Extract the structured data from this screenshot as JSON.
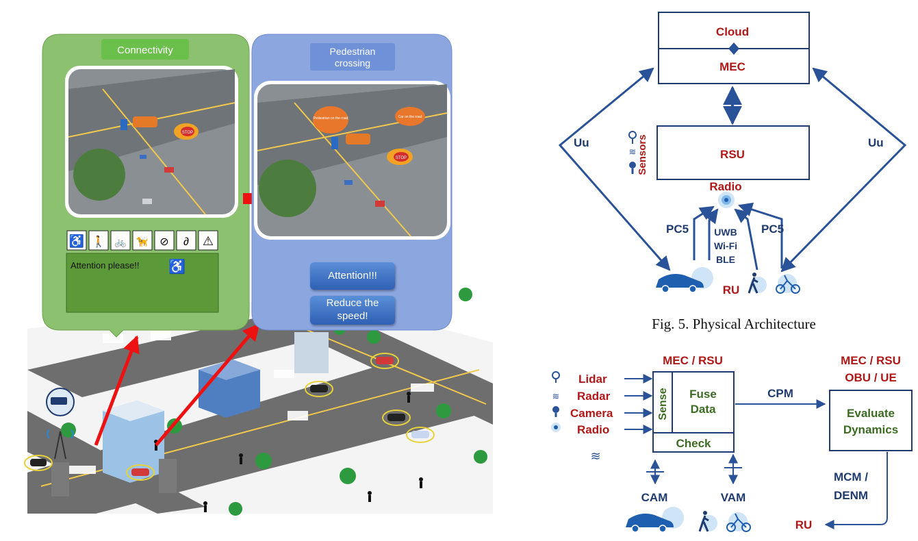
{
  "left_scene": {
    "connectivity_panel": {
      "title": "Connectivity",
      "icons": [
        "wheelchair-icon",
        "elderly-icon",
        "bicycle-icon",
        "guide-dog-icon",
        "low-vision-icon",
        "hearing-impaired-icon",
        "warning-icon"
      ],
      "message": "Attention please!!"
    },
    "crossing_panel": {
      "title_line1": "Pedestrian",
      "title_line2": "crossing",
      "bubble1": "Pedestrian on the road",
      "bubble2": "Car on the road",
      "stop_sign": "STOP",
      "button1": "Attention!!!",
      "button2_line1": "Reduce the",
      "button2_line2": "speed!"
    },
    "colors": {
      "green_panel": "#8cc26f",
      "blue_panel": "#8ca6e0",
      "arrow": "#ee1111"
    }
  },
  "physical_architecture": {
    "cloud": "Cloud",
    "mec": "MEC",
    "rsu": "RSU",
    "sensors": "Sensors",
    "radio": "Radio",
    "uu_left": "Uu",
    "uu_right": "Uu",
    "pc5_left": "PC5",
    "pc5_right": "PC5",
    "uwb": "UWB",
    "wifi": "Wi-Fi",
    "ble": "BLE",
    "ru": "RU",
    "caption": "Fig. 5.  Physical Architecture"
  },
  "data_flow": {
    "mec_rsu": "MEC / RSU",
    "inputs": [
      "Lidar",
      "Radar",
      "Camera",
      "Radio"
    ],
    "sense": "Sense",
    "fuse_line1": "Fuse",
    "fuse_line2": "Data",
    "check": "Check",
    "cpm": "CPM",
    "right_line1": "MEC / RSU",
    "right_line2": "OBU / UE",
    "evaluate_line1": "Evaluate",
    "evaluate_line2": "Dynamics",
    "cam": "CAM",
    "vam": "VAM",
    "mcm": "MCM /",
    "denm": "DENM",
    "ru": "RU"
  },
  "colors": {
    "dark_red": "#b01818",
    "navy": "#1f3b70",
    "dark_green": "#3c6b22",
    "line_blue": "#2a5298"
  }
}
